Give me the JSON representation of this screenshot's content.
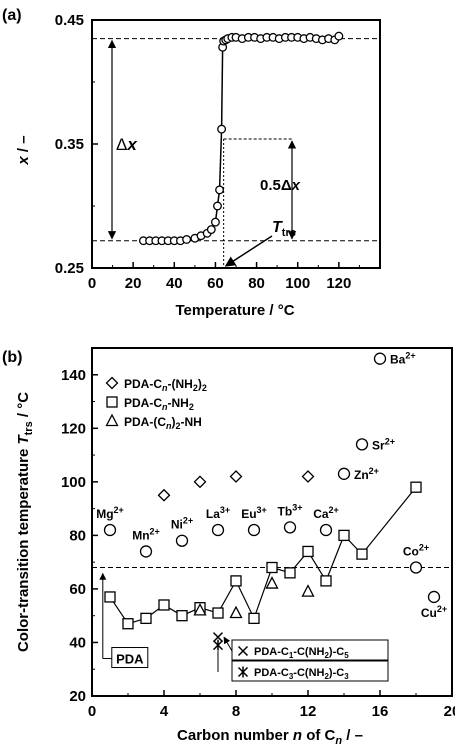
{
  "chart_data": [
    {
      "panel_label": "(a)",
      "type": "scatter",
      "xlabel": "Temperature / °C",
      "ylabel": "x / –",
      "xlim": [
        0,
        140
      ],
      "ylim": [
        0.25,
        0.45
      ],
      "xticks": [
        "0",
        "20",
        "40",
        "60",
        "80",
        "100",
        "120"
      ],
      "yticks": [
        "0.25",
        "0.35",
        "0.45"
      ],
      "series": [
        {
          "x": [
            25,
            28,
            31,
            34,
            37,
            40,
            43,
            46,
            50,
            53,
            56,
            58,
            60,
            61,
            62,
            63,
            63.5,
            64,
            65,
            66,
            68,
            70,
            73,
            76,
            79,
            82,
            85,
            88,
            91,
            94,
            97,
            100,
            103,
            106,
            109,
            112,
            115,
            118,
            120
          ],
          "y": [
            0.272,
            0.272,
            0.272,
            0.272,
            0.272,
            0.272,
            0.272,
            0.273,
            0.274,
            0.276,
            0.278,
            0.281,
            0.287,
            0.3,
            0.313,
            0.362,
            0.428,
            0.433,
            0.434,
            0.435,
            0.436,
            0.436,
            0.435,
            0.436,
            0.436,
            0.435,
            0.436,
            0.436,
            0.435,
            0.436,
            0.436,
            0.436,
            0.435,
            0.436,
            0.435,
            0.434,
            0.435,
            0.434,
            0.437
          ]
        }
      ],
      "upper_level": 0.435,
      "lower_level": 0.272,
      "half_level": 0.354,
      "transition_temp": 64,
      "annotations": {
        "delta": "Δx",
        "half_delta": "0.5Δx",
        "ttrs_main": "T",
        "ttrs_sub": "trs"
      }
    },
    {
      "panel_label": "(b)",
      "type": "scatter",
      "xlabel": "Carbon number n of C",
      "xlabel_sub": "n",
      "xlabel_unit": " / –",
      "ylabel": "Color-transition temperature T",
      "ylabel_sub": "trs",
      "ylabel_unit": " / °C",
      "xlim": [
        0,
        20
      ],
      "ylim": [
        20,
        150
      ],
      "xticks": [
        "0",
        "4",
        "8",
        "12",
        "16",
        "20"
      ],
      "yticks": [
        "20",
        "40",
        "60",
        "80",
        "100",
        "120",
        "140"
      ],
      "pda_level": 68,
      "legend": [
        {
          "marker": "diamond",
          "label": "PDA-C",
          "sub": "n",
          "suffix": "-(NH",
          "sub2": "2",
          "end": ")",
          "sub3": "2"
        },
        {
          "marker": "square",
          "label": "PDA-C",
          "sub": "n",
          "suffix": "-NH",
          "sub2": "2",
          "end": "",
          "sub3": ""
        },
        {
          "marker": "triangle",
          "label": "PDA-(C",
          "sub": "n",
          "suffix": ")",
          "sub2": "2",
          "end": "-NH",
          "sub3": ""
        }
      ],
      "series": [
        {
          "name": "PDA-Cn-(NH2)2",
          "marker": "diamond",
          "x": [
            4,
            6,
            8,
            12
          ],
          "y": [
            95,
            100,
            102,
            102
          ]
        },
        {
          "name": "PDA-Cn-NH2",
          "marker": "square",
          "x": [
            1,
            2,
            3,
            4,
            5,
            6,
            7,
            8,
            9,
            10,
            11,
            12,
            13,
            14,
            15,
            18
          ],
          "y": [
            57,
            47,
            49,
            54,
            50,
            53,
            51,
            63,
            49,
            68,
            66,
            74,
            63,
            80,
            73,
            98
          ]
        },
        {
          "name": "PDA-(Cn)2-NH",
          "marker": "triangle",
          "x": [
            6,
            8,
            10,
            12
          ],
          "y": [
            52,
            51,
            62,
            59
          ]
        },
        {
          "name": "PDA-C1-C(NH2)-C5",
          "marker": "x",
          "x": [
            7
          ],
          "y": [
            42
          ]
        },
        {
          "name": "PDA-C3-C(NH2)-C3",
          "marker": "asterisk",
          "x": [
            7
          ],
          "y": [
            39
          ]
        }
      ],
      "ions": [
        {
          "label": "Mg",
          "charge": "2+",
          "x": 1,
          "y": 82
        },
        {
          "label": "Mn",
          "charge": "2+",
          "x": 3,
          "y": 74
        },
        {
          "label": "Ni",
          "charge": "2+",
          "x": 5,
          "y": 78
        },
        {
          "label": "La",
          "charge": "3+",
          "x": 7,
          "y": 82
        },
        {
          "label": "Eu",
          "charge": "3+",
          "x": 9,
          "y": 82
        },
        {
          "label": "Tb",
          "charge": "3+",
          "x": 11,
          "y": 83
        },
        {
          "label": "Ca",
          "charge": "2+",
          "x": 13,
          "y": 82
        },
        {
          "label": "Zn",
          "charge": "2+",
          "x": 14,
          "y": 103
        },
        {
          "label": "Sr",
          "charge": "2+",
          "x": 15,
          "y": 114
        },
        {
          "label": "Ba",
          "charge": "2+",
          "x": 16,
          "y": 146
        },
        {
          "label": "Co",
          "charge": "2+",
          "x": 18,
          "y": 68
        },
        {
          "label": "Cu",
          "charge": "2+",
          "x": 19,
          "y": 57
        }
      ],
      "pda_label": "PDA",
      "boxed_labels": [
        {
          "marker": "x",
          "t1": "PDA-C",
          "s1": "1",
          "t2": "-C(NH",
          "s2": "2",
          "t3": ")-C",
          "s3": "5"
        },
        {
          "marker": "asterisk",
          "t1": "PDA-C",
          "s1": "3",
          "t2": "-C(NH",
          "s2": "2",
          "t3": ")-C",
          "s3": "3"
        }
      ]
    }
  ]
}
